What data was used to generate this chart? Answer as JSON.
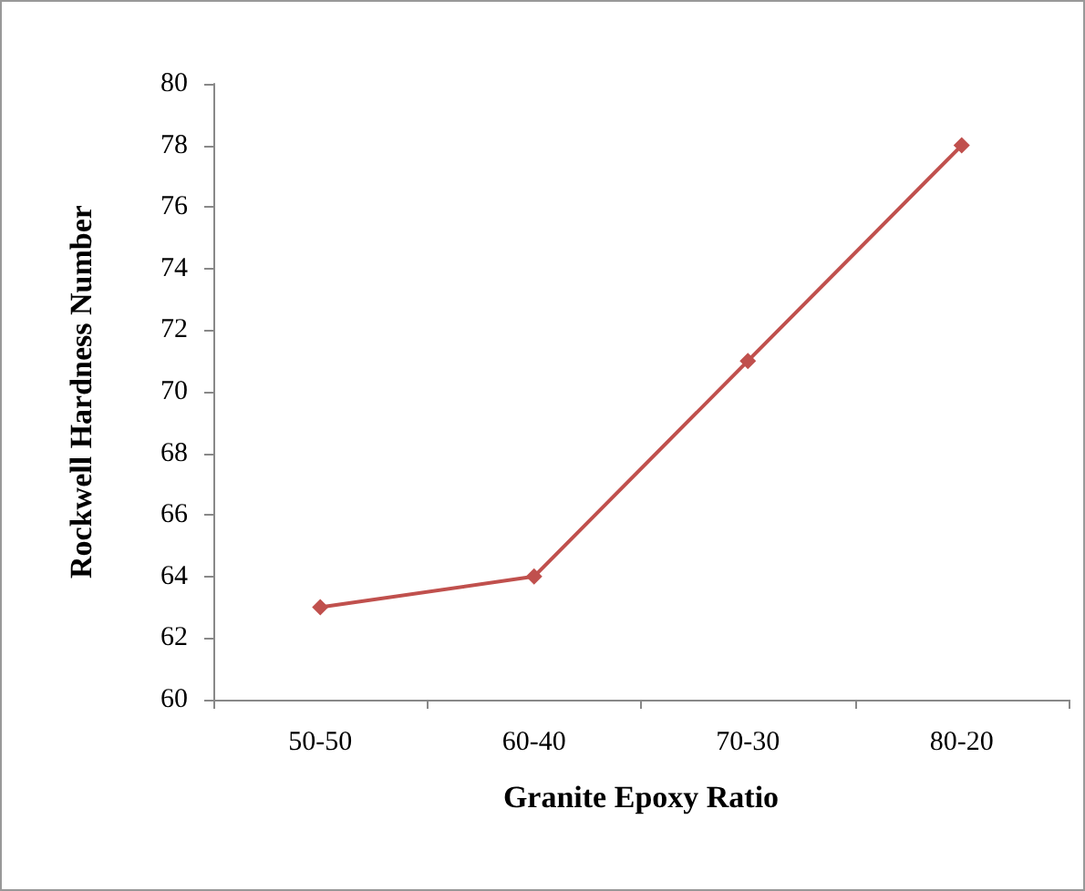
{
  "chart_data": {
    "type": "line",
    "xlabel": "Granite Epoxy Ratio",
    "ylabel": "Rockwell Hardness Number",
    "categories": [
      "50-50",
      "60-40",
      "70-30",
      "80-20"
    ],
    "series": [
      {
        "color": "#c0504d",
        "values": [
          63,
          64,
          71,
          78
        ]
      }
    ],
    "ylim": [
      60,
      80
    ],
    "yticks": [
      60,
      62,
      64,
      66,
      68,
      70,
      72,
      74,
      76,
      78,
      80
    ],
    "grid": false,
    "marker": "diamond",
    "line_style": "solid"
  }
}
